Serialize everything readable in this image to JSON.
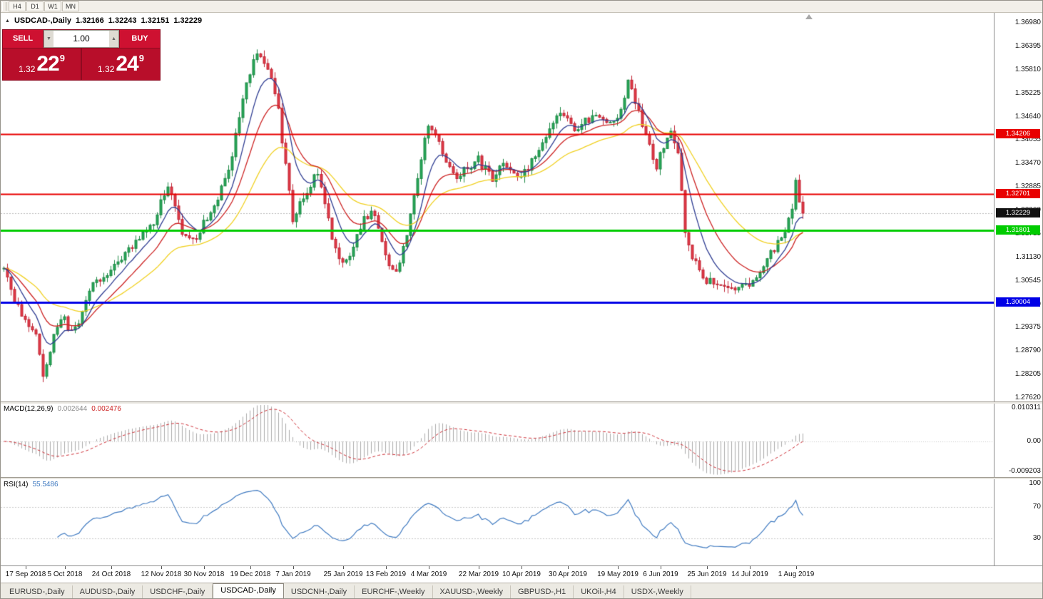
{
  "toolbar": {
    "timeframes": [
      "H4",
      "D1",
      "W1",
      "MN"
    ]
  },
  "icons": {
    "panel_toggle": "▲",
    "spinner_up": "▲",
    "spinner_down": "▼"
  },
  "chart": {
    "symbol_label": "USDCAD-,Daily",
    "ohlc": {
      "open": "1.32166",
      "high": "1.32243",
      "low": "1.32151",
      "close": "1.32229"
    },
    "trade_panel": {
      "sell_label": "SELL",
      "buy_label": "BUY",
      "volume": "1.00",
      "sell_price_small": "1.32",
      "sell_price_big": "22",
      "sell_price_sup": "9",
      "buy_price_small": "1.32",
      "buy_price_big": "24",
      "buy_price_sup": "9"
    },
    "current_price": {
      "value": 1.32229,
      "label": "1.32229",
      "color": "#111111"
    },
    "price_axis": {
      "labels": [
        "1.36980",
        "1.36395",
        "1.35810",
        "1.35225",
        "1.34640",
        "1.34055",
        "1.33470",
        "1.32885",
        "1.32300",
        "1.31715",
        "1.31130",
        "1.30545",
        "1.29960",
        "1.29375",
        "1.28790",
        "1.28205",
        "1.27620"
      ]
    },
    "levels": [
      {
        "price": 1.34206,
        "label": "1.34206",
        "color": "#e80000",
        "width": 2
      },
      {
        "price": 1.32701,
        "label": "1.32701",
        "color": "#e80000",
        "width": 2
      },
      {
        "price": 1.31801,
        "label": "1.31801",
        "color": "#00cc00",
        "width": 3
      },
      {
        "price": 1.30004,
        "label": "1.30004",
        "color": "#0000e6",
        "width": 3
      }
    ],
    "date_axis": [
      {
        "text": "17 Sep 2018",
        "bar": 6
      },
      {
        "text": "5 Oct 2018",
        "bar": 17
      },
      {
        "text": "24 Oct 2018",
        "bar": 30
      },
      {
        "text": "12 Nov 2018",
        "bar": 44
      },
      {
        "text": "30 Nov 2018",
        "bar": 56
      },
      {
        "text": "19 Dec 2018",
        "bar": 69
      },
      {
        "text": "7 Jan 2019",
        "bar": 81
      },
      {
        "text": "25 Jan 2019",
        "bar": 95
      },
      {
        "text": "13 Feb 2019",
        "bar": 107
      },
      {
        "text": "4 Mar 2019",
        "bar": 119
      },
      {
        "text": "22 Mar 2019",
        "bar": 133
      },
      {
        "text": "10 Apr 2019",
        "bar": 145
      },
      {
        "text": "30 Apr 2019",
        "bar": 158
      },
      {
        "text": "19 May 2019",
        "bar": 172
      },
      {
        "text": "6 Jun 2019",
        "bar": 184
      },
      {
        "text": "25 Jun 2019",
        "bar": 197
      },
      {
        "text": "14 Jul 2019",
        "bar": 209
      },
      {
        "text": "1 Aug 2019",
        "bar": 222
      }
    ]
  },
  "indicators": {
    "macd": {
      "name": "MACD(12,26,9)",
      "value_main": "0.002644",
      "value_signal": "0.002476",
      "axis_labels": [
        {
          "text": "0.010311",
          "v": 0.010311
        },
        {
          "text": "0.00",
          "v": 0.0
        },
        {
          "text": "-0.009203",
          "v": -0.009203
        }
      ]
    },
    "rsi": {
      "name": "RSI(14)",
      "value": "55.5486",
      "axis_labels": [
        {
          "text": "100",
          "v": 100
        },
        {
          "text": "70",
          "v": 70
        },
        {
          "text": "30",
          "v": 30
        }
      ],
      "levels": [
        70,
        30
      ]
    }
  },
  "tabs": {
    "active_index": 3,
    "items": [
      "EURUSD-,Daily",
      "AUDUSD-,Daily",
      "USDCHF-,Daily",
      "USDCAD-,Daily",
      "USDCNH-,Daily",
      "EURCHF-,Weekly",
      "XAUUSD-,Weekly",
      "GBPUSD-,H1",
      "UKOil-,H4",
      "USDX-,Weekly"
    ]
  },
  "chart_data": {
    "type": "candlestick",
    "symbol": "USDCAD",
    "timeframe": "Daily",
    "bars": 225,
    "y_axis": {
      "min": 1.2762,
      "max": 1.3698,
      "tick_step": 0.00585
    },
    "x_axis": {
      "start": "17 Sep 2018",
      "end": "1 Aug 2019"
    },
    "current_bid": 1.32229,
    "horizontal_lines": [
      1.34206,
      1.32701,
      1.31801,
      1.30004
    ],
    "price_anchors": [
      [
        0,
        1.3085
      ],
      [
        3,
        1.301
      ],
      [
        6,
        1.2958
      ],
      [
        9,
        1.2915
      ],
      [
        11,
        1.282
      ],
      [
        13,
        1.2875
      ],
      [
        15,
        1.2945
      ],
      [
        17,
        1.2958
      ],
      [
        19,
        1.2925
      ],
      [
        21,
        1.295
      ],
      [
        24,
        1.303
      ],
      [
        28,
        1.3068
      ],
      [
        30,
        1.3088
      ],
      [
        33,
        1.3105
      ],
      [
        36,
        1.314
      ],
      [
        39,
        1.3168
      ],
      [
        42,
        1.3205
      ],
      [
        44,
        1.3248
      ],
      [
        46,
        1.3288
      ],
      [
        48,
        1.3238
      ],
      [
        50,
        1.3165
      ],
      [
        53,
        1.3152
      ],
      [
        56,
        1.32
      ],
      [
        59,
        1.3242
      ],
      [
        61,
        1.329
      ],
      [
        63,
        1.332
      ],
      [
        65,
        1.342
      ],
      [
        67,
        1.35
      ],
      [
        69,
        1.3578
      ],
      [
        71,
        1.363
      ],
      [
        73,
        1.3598
      ],
      [
        75,
        1.357
      ],
      [
        77,
        1.3478
      ],
      [
        79,
        1.334
      ],
      [
        81,
        1.321
      ],
      [
        83,
        1.3242
      ],
      [
        85,
        1.327
      ],
      [
        87,
        1.3312
      ],
      [
        88,
        1.333
      ],
      [
        90,
        1.325
      ],
      [
        92,
        1.316
      ],
      [
        95,
        1.309
      ],
      [
        97,
        1.312
      ],
      [
        100,
        1.319
      ],
      [
        103,
        1.3235
      ],
      [
        105,
        1.318
      ],
      [
        107,
        1.311
      ],
      [
        110,
        1.3085
      ],
      [
        112,
        1.313
      ],
      [
        114,
        1.322
      ],
      [
        116,
        1.332
      ],
      [
        119,
        1.344
      ],
      [
        121,
        1.3418
      ],
      [
        124,
        1.334
      ],
      [
        127,
        1.3318
      ],
      [
        130,
        1.3338
      ],
      [
        133,
        1.3358
      ],
      [
        135,
        1.333
      ],
      [
        137,
        1.3305
      ],
      [
        140,
        1.3345
      ],
      [
        143,
        1.3318
      ],
      [
        145,
        1.3315
      ],
      [
        148,
        1.335
      ],
      [
        151,
        1.34
      ],
      [
        154,
        1.345
      ],
      [
        157,
        1.3475
      ],
      [
        160,
        1.343
      ],
      [
        163,
        1.345
      ],
      [
        166,
        1.346
      ],
      [
        169,
        1.3445
      ],
      [
        172,
        1.3465
      ],
      [
        174,
        1.351
      ],
      [
        175,
        1.3545
      ],
      [
        177,
        1.3505
      ],
      [
        179,
        1.344
      ],
      [
        181,
        1.339
      ],
      [
        183,
        1.334
      ],
      [
        185,
        1.3395
      ],
      [
        187,
        1.343
      ],
      [
        189,
        1.337
      ],
      [
        191,
        1.318
      ],
      [
        193,
        1.312
      ],
      [
        195,
        1.3075
      ],
      [
        197,
        1.3055
      ],
      [
        200,
        1.3045
      ],
      [
        203,
        1.3038
      ],
      [
        205,
        1.3032
      ],
      [
        207,
        1.305
      ],
      [
        209,
        1.304
      ],
      [
        211,
        1.307
      ],
      [
        213,
        1.3095
      ],
      [
        215,
        1.312
      ],
      [
        217,
        1.3145
      ],
      [
        219,
        1.318
      ],
      [
        221,
        1.323
      ],
      [
        222,
        1.331
      ],
      [
        223,
        1.3245
      ],
      [
        224,
        1.32229
      ]
    ],
    "moving_averages": [
      {
        "name": "fast",
        "period": 8,
        "color": "#2f3d92"
      },
      {
        "name": "medium",
        "period": 16,
        "color": "#cc2222"
      },
      {
        "name": "slow",
        "period": 34,
        "color": "#f0d020"
      }
    ],
    "macd": {
      "fast": 12,
      "slow": 26,
      "signal": 9,
      "last_main": 0.002644,
      "last_signal": 0.002476,
      "range": [
        -0.009203,
        0.010311
      ]
    },
    "rsi": {
      "period": 14,
      "last": 55.5486,
      "levels": [
        30,
        70
      ]
    }
  }
}
